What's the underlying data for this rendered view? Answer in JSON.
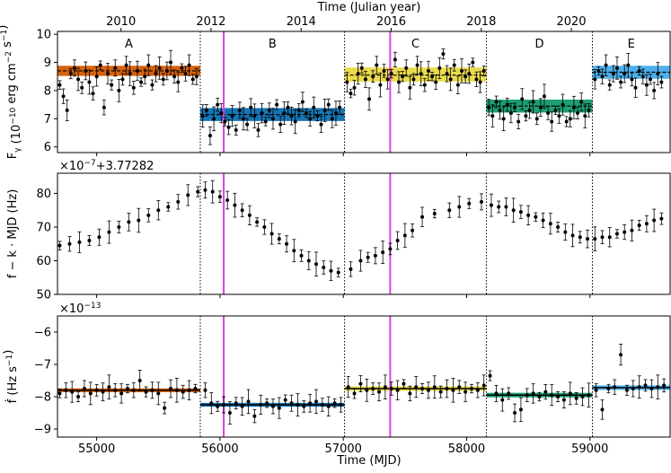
{
  "chart_data": {
    "type": "scatter",
    "top_axis": {
      "title": "Time (Julian year)",
      "ticks": [
        "2010",
        "2012",
        "2014",
        "2016",
        "2018",
        "2020"
      ],
      "tick_mjd": [
        55197,
        55927,
        56658,
        57388,
        58119,
        58849
      ]
    },
    "x": {
      "label": "Time (MJD)",
      "range": [
        54682,
        59650
      ],
      "ticks": [
        55000,
        56000,
        57000,
        58000,
        59000
      ],
      "tick_labels": [
        "55000",
        "56000",
        "57000",
        "58000",
        "59000"
      ]
    },
    "segments": [
      {
        "name": "A",
        "start": 54682,
        "end": 55840,
        "color": "#d45a00",
        "band_alpha": 0.95
      },
      {
        "name": "B",
        "start": 55840,
        "end": 57010,
        "color": "#0a6fb0",
        "band_alpha": 0.95
      },
      {
        "name": "C",
        "start": 57010,
        "end": 58160,
        "color": "#e8d630",
        "band_alpha": 0.85
      },
      {
        "name": "D",
        "start": 58160,
        "end": 59020,
        "color": "#119a6a",
        "band_alpha": 0.95
      },
      {
        "name": "E",
        "start": 59020,
        "end": 59650,
        "color": "#3aa7e8",
        "band_alpha": 0.9
      }
    ],
    "magenta_lines_mjd": [
      56030,
      57380
    ],
    "panels": [
      {
        "id": "flux",
        "ylabel": "F_γ (10^-10 erg cm^-2 s^-1)",
        "ylim": [
          5.8,
          10.1
        ],
        "yticks": [
          6,
          7,
          8,
          9,
          10
        ],
        "ytick_labels": [
          "6",
          "7",
          "8",
          "9",
          "10"
        ],
        "offset_text": "",
        "segment_levels": [
          {
            "mean": 8.7,
            "band": [
              8.52,
              8.88
            ]
          },
          {
            "mean": 7.15,
            "band": [
              6.92,
              7.38
            ]
          },
          {
            "mean": 8.55,
            "band": [
              8.32,
              8.82
            ]
          },
          {
            "mean": 7.45,
            "band": [
              7.22,
              7.68
            ]
          },
          {
            "mean": 8.65,
            "band": [
              8.42,
              8.88
            ]
          }
        ],
        "points": {
          "mjd": [
            54700,
            54730,
            54760,
            54790,
            54820,
            54850,
            54880,
            54910,
            54940,
            54970,
            55000,
            55030,
            55060,
            55090,
            55120,
            55150,
            55180,
            55210,
            55240,
            55270,
            55300,
            55330,
            55360,
            55390,
            55420,
            55450,
            55480,
            55510,
            55540,
            55570,
            55600,
            55630,
            55660,
            55690,
            55720,
            55750,
            55780,
            55810,
            55860,
            55890,
            55920,
            55950,
            55980,
            56010,
            56040,
            56070,
            56100,
            56130,
            56160,
            56190,
            56220,
            56250,
            56280,
            56310,
            56340,
            56370,
            56400,
            56430,
            56460,
            56490,
            56520,
            56550,
            56580,
            56610,
            56640,
            56670,
            56700,
            56730,
            56760,
            56790,
            56820,
            56850,
            56880,
            56910,
            56940,
            56970,
            57030,
            57060,
            57090,
            57120,
            57150,
            57180,
            57210,
            57240,
            57270,
            57300,
            57330,
            57360,
            57390,
            57420,
            57450,
            57480,
            57510,
            57540,
            57570,
            57600,
            57630,
            57660,
            57690,
            57720,
            57750,
            57780,
            57810,
            57840,
            57870,
            57900,
            57930,
            57960,
            57990,
            58020,
            58050,
            58080,
            58110,
            58140,
            58180,
            58210,
            58240,
            58270,
            58300,
            58330,
            58360,
            58390,
            58420,
            58450,
            58480,
            58510,
            58540,
            58570,
            58600,
            58630,
            58660,
            58690,
            58720,
            58750,
            58780,
            58810,
            58840,
            58870,
            58900,
            58930,
            58960,
            58990,
            59040,
            59070,
            59100,
            59130,
            59160,
            59190,
            59220,
            59250,
            59280,
            59310,
            59340,
            59370,
            59400,
            59430,
            59460,
            59490,
            59520,
            59550,
            59580
          ],
          "y": [
            8.2,
            7.8,
            7.3,
            8.6,
            8.8,
            8.4,
            8.1,
            8.7,
            8.3,
            7.9,
            8.5,
            8.9,
            7.4,
            8.6,
            8.2,
            8.8,
            8.0,
            8.4,
            8.9,
            8.6,
            8.1,
            8.7,
            8.3,
            8.5,
            8.9,
            8.2,
            8.6,
            8.8,
            8.4,
            8.7,
            9.0,
            8.5,
            8.3,
            8.8,
            8.6,
            8.9,
            8.4,
            8.5,
            7.1,
            7.3,
            6.4,
            7.0,
            7.5,
            7.2,
            6.9,
            6.7,
            7.1,
            6.6,
            7.3,
            7.0,
            6.8,
            7.4,
            7.1,
            6.6,
            7.2,
            6.9,
            7.3,
            7.0,
            7.5,
            6.8,
            7.2,
            7.4,
            7.1,
            6.9,
            7.3,
            7.6,
            7.2,
            7.0,
            7.4,
            7.1,
            6.8,
            7.3,
            7.5,
            7.0,
            7.2,
            7.4,
            8.3,
            7.9,
            8.1,
            8.6,
            8.8,
            8.4,
            7.7,
            8.5,
            8.9,
            8.2,
            8.7,
            8.4,
            8.6,
            9.1,
            8.3,
            8.5,
            8.8,
            8.1,
            8.4,
            8.9,
            8.6,
            8.2,
            8.7,
            8.5,
            8.3,
            8.8,
            9.3,
            8.6,
            8.4,
            8.9,
            8.2,
            8.7,
            8.5,
            8.6,
            9.0,
            8.4,
            8.3,
            8.7,
            7.4,
            7.1,
            7.6,
            7.3,
            7.0,
            7.5,
            7.2,
            7.4,
            6.9,
            7.7,
            7.1,
            7.3,
            7.6,
            7.0,
            7.4,
            7.8,
            7.2,
            6.9,
            7.3,
            7.1,
            7.5,
            6.9,
            7.0,
            7.4,
            7.2,
            7.6,
            7.1,
            7.3,
            8.4,
            8.7,
            8.5,
            8.9,
            8.2,
            8.6,
            8.8,
            8.3,
            8.6,
            8.9,
            8.4,
            8.1,
            8.7,
            8.5,
            8.2,
            8.4,
            8.0,
            8.6,
            8.3
          ]
        }
      },
      {
        "id": "freq",
        "ylabel": "f − k · MJD (Hz)",
        "ylim": [
          50,
          86
        ],
        "yticks": [
          50,
          60,
          70,
          80
        ],
        "ytick_labels": [
          "50",
          "60",
          "70",
          "80"
        ],
        "offset_text": "×10^−7+3.77282",
        "points": {
          "mjd": [
            54700,
            54780,
            54860,
            54940,
            55020,
            55100,
            55180,
            55260,
            55340,
            55420,
            55500,
            55580,
            55660,
            55740,
            55820,
            55880,
            55940,
            56000,
            56060,
            56120,
            56180,
            56240,
            56300,
            56360,
            56420,
            56480,
            56540,
            56600,
            56660,
            56720,
            56780,
            56840,
            56900,
            56960,
            57060,
            57140,
            57200,
            57260,
            57320,
            57380,
            57440,
            57500,
            57560,
            57640,
            57740,
            57860,
            57940,
            58020,
            58120,
            58200,
            58260,
            58320,
            58380,
            58440,
            58500,
            58560,
            58620,
            58680,
            58740,
            58800,
            58860,
            58920,
            58980,
            59040,
            59100,
            59160,
            59220,
            59280,
            59340,
            59400,
            59460,
            59520,
            59580
          ],
          "y": [
            64.5,
            65.0,
            65.5,
            66.0,
            67.0,
            68.5,
            70.0,
            71.5,
            72.0,
            73.5,
            75.0,
            76.0,
            77.5,
            79.5,
            80.5,
            81.0,
            80.5,
            79.0,
            78.0,
            76.5,
            75.0,
            73.5,
            71.5,
            70.0,
            68.0,
            66.5,
            65.0,
            63.0,
            61.5,
            60.0,
            59.0,
            58.0,
            57.0,
            56.5,
            57.5,
            60.0,
            61.0,
            61.5,
            62.5,
            63.5,
            66.0,
            67.5,
            69.0,
            73.0,
            74.0,
            75.0,
            76.0,
            77.0,
            77.5,
            76.5,
            76.0,
            76.0,
            75.0,
            74.5,
            73.5,
            73.0,
            72.0,
            71.0,
            70.0,
            68.5,
            67.5,
            67.0,
            66.5,
            66.5,
            67.0,
            67.0,
            68.0,
            68.5,
            69.0,
            70.5,
            71.0,
            72.0,
            72.5
          ]
        }
      },
      {
        "id": "fdot",
        "ylabel": "ḟ (Hz s^-1)",
        "ylim": [
          -9.25,
          -5.5
        ],
        "yticks": [
          -9,
          -8,
          -7,
          -6
        ],
        "ytick_labels": [
          "−9",
          "−8",
          "−7",
          "−6"
        ],
        "offset_text": "×10^−13",
        "segment_levels": [
          {
            "mean": -7.8,
            "band": [
              -7.86,
              -7.74
            ]
          },
          {
            "mean": -8.25,
            "band": [
              -8.31,
              -8.19
            ]
          },
          {
            "mean": -7.75,
            "band": [
              -7.82,
              -7.68
            ]
          },
          {
            "mean": -7.95,
            "band": [
              -8.02,
              -7.88
            ]
          },
          {
            "mean": -7.72,
            "band": [
              -7.79,
              -7.65
            ]
          }
        ],
        "points": {
          "mjd": [
            54700,
            54750,
            54800,
            54850,
            54900,
            54950,
            55000,
            55050,
            55100,
            55150,
            55200,
            55250,
            55300,
            55350,
            55400,
            55450,
            55500,
            55550,
            55600,
            55650,
            55700,
            55750,
            55800,
            55880,
            55930,
            55980,
            56030,
            56080,
            56130,
            56180,
            56230,
            56280,
            56330,
            56380,
            56430,
            56480,
            56530,
            56580,
            56630,
            56680,
            56730,
            56780,
            56830,
            56880,
            56930,
            56980,
            57040,
            57090,
            57140,
            57190,
            57240,
            57290,
            57340,
            57390,
            57440,
            57490,
            57540,
            57590,
            57640,
            57690,
            57740,
            57790,
            57840,
            57890,
            57940,
            57990,
            58040,
            58090,
            58140,
            58190,
            58240,
            58290,
            58340,
            58390,
            58440,
            58490,
            58540,
            58590,
            58640,
            58690,
            58740,
            58790,
            58840,
            58890,
            58940,
            58990,
            59050,
            59100,
            59150,
            59200,
            59250,
            59300,
            59350,
            59400,
            59450,
            59500,
            59550,
            59600
          ],
          "y": [
            -7.9,
            -7.8,
            -7.85,
            -8.0,
            -7.75,
            -7.9,
            -7.8,
            -7.85,
            -7.7,
            -7.8,
            -7.9,
            -7.75,
            -7.8,
            -7.5,
            -7.85,
            -7.8,
            -7.9,
            -8.35,
            -7.75,
            -7.8,
            -7.85,
            -7.8,
            -7.75,
            -7.8,
            -8.2,
            -8.3,
            -8.25,
            -8.5,
            -8.2,
            -8.3,
            -8.15,
            -8.6,
            -8.25,
            -8.2,
            -8.3,
            -8.35,
            -8.1,
            -8.2,
            -8.25,
            -8.3,
            -8.2,
            -8.15,
            -8.25,
            -8.3,
            -8.2,
            -8.25,
            -7.7,
            -7.9,
            -7.6,
            -7.8,
            -7.75,
            -7.85,
            -7.7,
            -7.75,
            -7.8,
            -7.6,
            -7.9,
            -7.7,
            -7.75,
            -7.8,
            -7.7,
            -7.85,
            -7.75,
            -7.8,
            -7.7,
            -7.85,
            -7.75,
            -7.8,
            -7.65,
            -7.35,
            -7.9,
            -8.1,
            -7.9,
            -8.5,
            -8.4,
            -7.95,
            -7.9,
            -8.0,
            -7.85,
            -7.95,
            -8.0,
            -8.1,
            -7.9,
            -8.05,
            -8.0,
            -7.95,
            -7.8,
            -8.4,
            -7.75,
            -7.7,
            -6.7,
            -7.8,
            -7.75,
            -7.7,
            -7.65,
            -7.75,
            -7.7,
            -7.65
          ]
        }
      }
    ]
  }
}
